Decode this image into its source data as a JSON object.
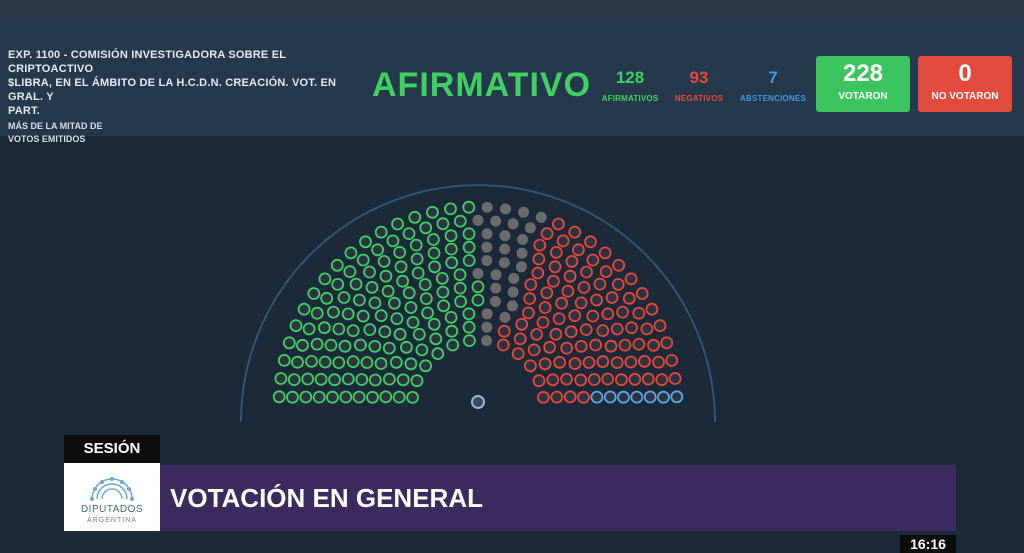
{
  "header": {
    "motion_line_1": "EXP. 1100 - COMISIÓN INVESTIGADORA SOBRE EL CRIPTOACTIVO",
    "motion_line_2": "$LIBRA, EN EL ÁMBITO DE LA H.C.D.N. CREACIÓN. VOT. EN GRAL. Y",
    "motion_line_3": "PART.",
    "majority_line_1": "MÁS DE LA MITAD DE",
    "majority_line_2": "VOTOS EMITIDOS",
    "result": "AFIRMATIVO"
  },
  "counts": {
    "afirmativos": {
      "value": "128",
      "label": "AFIRMATIVOS"
    },
    "negativos": {
      "value": "93",
      "label": "NEGATIVOS"
    },
    "abstenciones": {
      "value": "7",
      "label": "ABSTENCIONES"
    },
    "votaron": {
      "value": "228",
      "label": "VOTARON"
    },
    "no_votaron": {
      "value": "0",
      "label": "NO VOTARON"
    }
  },
  "hemicycle": {
    "vote_counts": {
      "afirmativo": 128,
      "negativo": 93,
      "abstencion": 7,
      "ausente": 28
    },
    "colors": {
      "afirmativo": "#3fcf62",
      "negativo": "#e8473a",
      "abstencion": "#5fa8e8",
      "ausente": "#6b6b6b",
      "presidente": "#9fb6d0"
    }
  },
  "footer": {
    "session_label": "SESIÓN",
    "logo_text": "DIPUTADOS",
    "logo_subtext": "ARGENTINA",
    "title": "VOTACIÓN EN GENERAL",
    "time": "16:16"
  },
  "theme": {
    "accent_green": "#3cc45e",
    "accent_red": "#e24a3d",
    "title_bar": "#3a2a5e"
  }
}
